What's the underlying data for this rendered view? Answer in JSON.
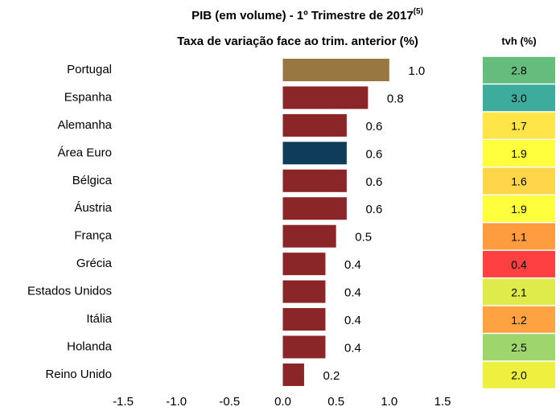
{
  "chart_data": {
    "type": "bar",
    "orientation": "horizontal",
    "title": "PIB (em volume) - 1º Trimestre de 2017",
    "title_superscript": "(5)",
    "subtitle": "Taxa de variação face ao trim. anterior (%)",
    "categories": [
      "Portugal",
      "Espanha",
      "Alemanha",
      "Área Euro",
      "Bélgica",
      "Áustria",
      "França",
      "Grécia",
      "Estados Unidos",
      "Itália",
      "Holanda",
      "Reino Unido"
    ],
    "values": [
      1.0,
      0.8,
      0.6,
      0.6,
      0.6,
      0.6,
      0.5,
      0.4,
      0.4,
      0.4,
      0.4,
      0.2
    ],
    "value_labels": [
      "1.0",
      "0.8",
      "0.6",
      "0.6",
      "0.6",
      "0.6",
      "0.5",
      "0.4",
      "0.4",
      "0.4",
      "0.4",
      "0.2"
    ],
    "colors": [
      "#987840",
      "#8a2528",
      "#8a2528",
      "#0f3c58",
      "#8a2528",
      "#8a2528",
      "#8a2528",
      "#8a2528",
      "#8a2528",
      "#8a2528",
      "#8a2528",
      "#8a2528"
    ],
    "xlim": [
      -1.5,
      1.5
    ],
    "xticks": [
      -1.5,
      {
        "value": -1.0,
        "label": "-1.0"
      },
      -0.5,
      {
        "value": 0.0,
        "label": "0.0"
      },
      0.5,
      {
        "value": 1.0,
        "label": "1.0"
      },
      1.5
    ],
    "grid": false,
    "tvh": {
      "title": "tvh (%)",
      "values": [
        2.8,
        3.0,
        1.7,
        1.9,
        1.6,
        1.9,
        1.1,
        0.4,
        2.1,
        1.2,
        2.5,
        2.0
      ],
      "value_labels": [
        "2.8",
        "3.0",
        "1.7",
        "1.9",
        "1.6",
        "1.9",
        "1.1",
        "0.4",
        "2.1",
        "1.2",
        "2.5",
        "2.0"
      ],
      "colors": [
        "#64bd7c",
        "#3dac9c",
        "#ffe547",
        "#ffff3d",
        "#ffd64a",
        "#ffff3d",
        "#ff9c40",
        "#ff4040",
        "#dfea4b",
        "#ffa342",
        "#9ed56c",
        "#edf03f"
      ]
    }
  }
}
